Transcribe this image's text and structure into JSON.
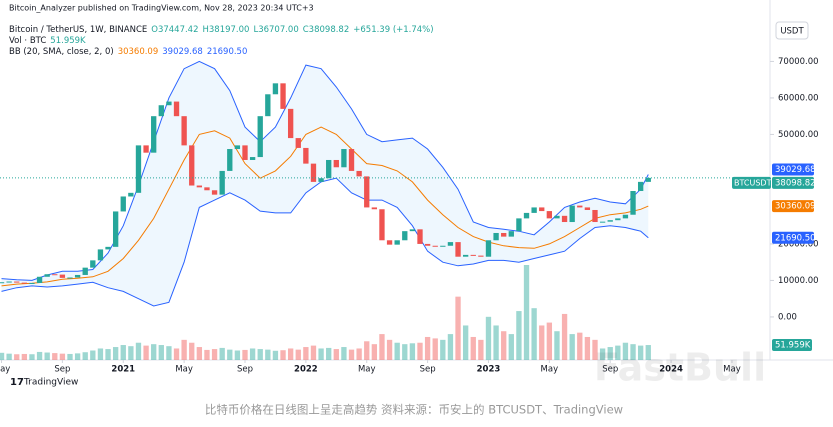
{
  "chart_data": {
    "type": "candlestick",
    "header": "Bitcoin_Analyzer published on TradingView.com, Nov 28, 2023 20:34 UTC+3",
    "legend": {
      "symbol": "Bitcoin / TetherUS, 1W, BINANCE",
      "ohlc": [
        "O37447.42",
        "H38197.00",
        "L36707.00",
        "C38098.82",
        "+651.39 (+1.74%)"
      ],
      "volume_title": "Vol · BTC",
      "volume_value": "51.959K",
      "bb_title": "BB (20, SMA, close, 2, 0)",
      "bb_values": [
        "30360.09",
        "39029.68",
        "21690.50"
      ]
    },
    "currency": "USDT",
    "brand": "TradingView",
    "watermark": "FastBull",
    "caption": "比特币价格在日线图上呈走高趋势 资料来源：币安上的 BTCUSDT、TradingView",
    "up_color": "#26a69a",
    "down_color": "#ef5350",
    "bb_color": "#2962ff",
    "basis_color": "#f57c00",
    "bb_fill": "#2196f3",
    "xlim": [
      3.9,
      54.5
    ],
    "xticks": [
      {
        "value": 4,
        "label": "May"
      },
      {
        "value": 8,
        "label": "Sep"
      },
      {
        "value": 12,
        "label": "2021"
      },
      {
        "value": 16,
        "label": "May"
      },
      {
        "value": 20,
        "label": "Sep"
      },
      {
        "value": 24,
        "label": "2022"
      },
      {
        "value": 28,
        "label": "May"
      },
      {
        "value": 32,
        "label": "Sep"
      },
      {
        "value": 36,
        "label": "2023"
      },
      {
        "value": 40,
        "label": "May"
      },
      {
        "value": 44,
        "label": "Sep"
      },
      {
        "value": 48,
        "label": "2024"
      },
      {
        "value": 52,
        "label": "May"
      }
    ],
    "ylim": [
      -11800,
      81350
    ],
    "yticks": [
      {
        "value": 0,
        "label": "0.00"
      },
      {
        "value": 10000,
        "label": "10000.00"
      },
      {
        "value": 20000,
        "label": "20000.00"
      },
      {
        "value": 50000,
        "label": "50000.00"
      },
      {
        "value": 60000,
        "label": "60000.00"
      },
      {
        "value": 70000,
        "label": "70000.00"
      }
    ],
    "volume_lim": [
      0,
      330000
    ],
    "x": [
      4,
      4.5,
      5,
      5.5,
      6,
      6.5,
      7,
      7.5,
      8,
      8.5,
      9,
      9.5,
      10,
      10.5,
      11,
      11.5,
      12,
      12.5,
      13,
      13.5,
      14,
      14.5,
      15,
      15.5,
      16,
      16.5,
      17,
      17.5,
      18,
      18.5,
      19,
      19.5,
      20,
      20.5,
      21,
      21.5,
      22,
      22.5,
      23,
      23.5,
      24,
      24.5,
      25,
      25.5,
      26,
      26.5,
      27,
      27.5,
      28,
      28.5,
      29,
      29.5,
      30,
      30.5,
      31,
      31.5,
      32,
      32.5,
      33,
      33.5,
      34,
      34.5,
      35,
      35.5,
      36,
      36.5,
      37,
      37.5,
      38,
      38.5,
      39,
      39.5,
      40,
      40.5,
      41,
      41.5,
      42,
      42.5,
      43,
      43.5,
      44,
      44.5,
      45,
      45.5,
      46,
      46.5
    ],
    "close": [
      9500,
      9700,
      9400,
      9200,
      9300,
      11000,
      11700,
      11600,
      10700,
      10800,
      11500,
      13500,
      15500,
      18500,
      19200,
      28900,
      33000,
      34000,
      47000,
      45000,
      55000,
      58000,
      59000,
      55000,
      47000,
      36000,
      35500,
      34700,
      33500,
      40000,
      46000,
      47000,
      43000,
      43800,
      55000,
      61000,
      64000,
      57000,
      49000,
      46300,
      42000,
      37000,
      38000,
      43000,
      41000,
      46000,
      40000,
      38500,
      30000,
      29500,
      21000,
      19800,
      21000,
      23500,
      24000,
      20000,
      19500,
      19400,
      19500,
      20500,
      16500,
      17000,
      16800,
      16500,
      21000,
      23000,
      22000,
      23500,
      27000,
      28500,
      30000,
      29000,
      27000,
      27700,
      26000,
      30500,
      30000,
      29300,
      26000,
      26100,
      26500,
      27000,
      28000,
      34500,
      37000,
      38098.82
    ],
    "volume": [
      25000,
      22000,
      20000,
      21000,
      20000,
      28000,
      26000,
      24000,
      22000,
      21000,
      23000,
      27000,
      33000,
      40000,
      38000,
      45000,
      52000,
      48000,
      60000,
      50000,
      55000,
      52000,
      48000,
      40000,
      70000,
      60000,
      45000,
      35000,
      38000,
      42000,
      36000,
      33000,
      35000,
      40000,
      38000,
      36000,
      32000,
      34000,
      40000,
      36000,
      45000,
      50000,
      40000,
      42000,
      38000,
      45000,
      36000,
      40000,
      65000,
      55000,
      90000,
      70000,
      60000,
      55000,
      58000,
      60000,
      80000,
      75000,
      70000,
      90000,
      220000,
      120000,
      80000,
      70000,
      150000,
      120000,
      100000,
      90000,
      170000,
      330000,
      180000,
      120000,
      130000,
      100000,
      160000,
      90000,
      95000,
      80000,
      70000,
      40000,
      45000,
      50000,
      60000,
      55000,
      50000,
      51959
    ],
    "bb": {
      "x": [
        4,
        5,
        6,
        7,
        8,
        9,
        10,
        11,
        12,
        13,
        14,
        15,
        16,
        17,
        18,
        19,
        20,
        21,
        22,
        23,
        24,
        25,
        26,
        27,
        28,
        29,
        30,
        31,
        32,
        33,
        34,
        35,
        36,
        37,
        38,
        39,
        40,
        41,
        42,
        43,
        44,
        45,
        46,
        46.5
      ],
      "upper": [
        10500,
        10200,
        10000,
        11500,
        12500,
        12500,
        13000,
        17500,
        25000,
        36000,
        48000,
        60000,
        68000,
        70000,
        68000,
        62000,
        52000,
        48000,
        52000,
        60000,
        69000,
        68000,
        63000,
        57000,
        50000,
        48000,
        48500,
        49000,
        46000,
        41000,
        35000,
        26000,
        24500,
        24000,
        23500,
        22500,
        26000,
        30000,
        31500,
        32500,
        31500,
        31000,
        35000,
        39029.68
      ],
      "basis": [
        8500,
        9000,
        9200,
        9600,
        10300,
        10600,
        11000,
        12500,
        16000,
        21000,
        27000,
        35000,
        43000,
        50000,
        51000,
        49000,
        42000,
        38000,
        40000,
        44000,
        50000,
        52000,
        50000,
        46000,
        42000,
        41500,
        40000,
        37000,
        32000,
        28000,
        24500,
        22000,
        20500,
        19500,
        19000,
        18800,
        20000,
        22000,
        24500,
        27000,
        28000,
        28500,
        29500,
        30360.09
      ],
      "lower": [
        7000,
        8000,
        8500,
        8200,
        8500,
        9000,
        9500,
        8000,
        7000,
        5000,
        3000,
        4000,
        15000,
        30000,
        32000,
        34000,
        32000,
        29000,
        28500,
        28500,
        34000,
        37000,
        38000,
        34000,
        32000,
        32000,
        30000,
        25000,
        18000,
        15000,
        14000,
        14500,
        15500,
        15500,
        15000,
        16000,
        17000,
        18000,
        21500,
        24500,
        25000,
        24500,
        23500,
        21690.5
      ]
    },
    "price_labels": [
      {
        "value": 39029.68,
        "label": "39029.68",
        "color": "#2962ff",
        "tag": "BTCUSDT"
      },
      {
        "value": 38098.82,
        "label": "38098.82",
        "color": "#26a69a"
      },
      {
        "value": 30360.09,
        "label": "30360.09",
        "color": "#f57c00"
      },
      {
        "value": 21690.5,
        "label": "21690.50",
        "color": "#2962ff"
      }
    ],
    "volume_label": {
      "value": 51959,
      "label": "51.959K",
      "color": "#26a69a"
    }
  }
}
